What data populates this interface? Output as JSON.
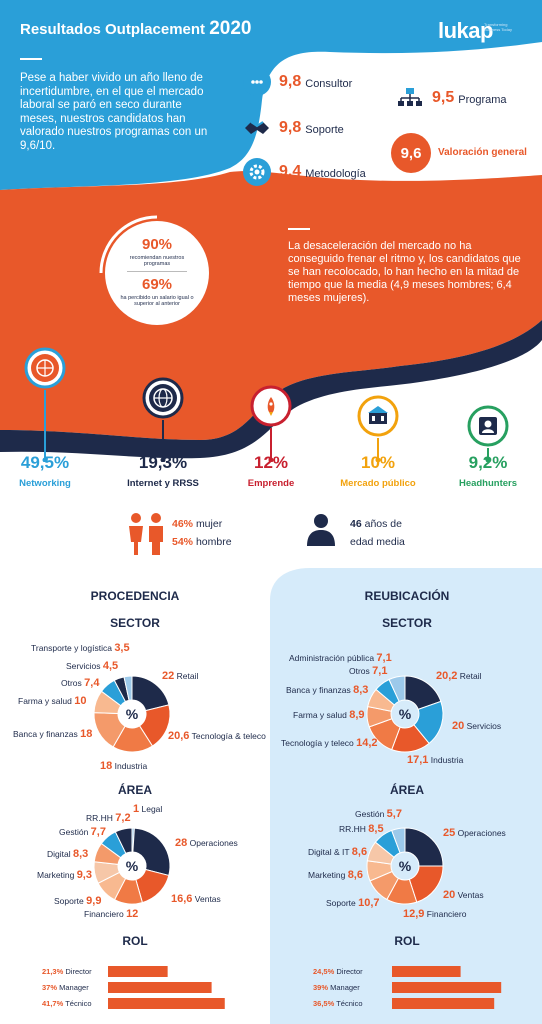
{
  "header": {
    "title": "Resultados Outplacement",
    "year": "2020",
    "logo": "lukap",
    "logo_sub": "Transforming Business Today"
  },
  "intro": "Pese a haber vivido un año lleno de incertidumbre, en el que el mercado laboral se paró en seco durante meses, nuestros candidatos han valorado nuestros programas con un 9,6/10.",
  "scores": [
    {
      "value": "9,8",
      "label": "Consultor",
      "icon": "chat-bubble-icon"
    },
    {
      "value": "9,8",
      "label": "Soporte",
      "icon": "handshake-icon"
    },
    {
      "value": "9,4",
      "label": "Metodología",
      "icon": "gear-icon"
    },
    {
      "value": "9,5",
      "label": "Programa",
      "icon": "org-chart-icon"
    }
  ],
  "overall": {
    "value": "9,6",
    "label": "Valoración general"
  },
  "recommend": {
    "pct1": "90%",
    "text1": "recomiendan nuestros programas",
    "pct2": "69%",
    "text2": "ha percibido un salario igual o superior al anterior"
  },
  "deceleration": "La desaceleración del mercado no ha conseguido frenar el ritmo y, los candidatos que se han recolocado, lo han hecho en la mitad de tiempo que la media (4,9 meses hombres; 6,4 meses mujeres).",
  "channels": [
    {
      "pct": "49,5%",
      "name": "Networking",
      "color": "#2a9fd8",
      "icon": "network-icon"
    },
    {
      "pct": "19,3%",
      "name": "Internet y RRSS",
      "color": "#1e2a4a",
      "icon": "globe-icon"
    },
    {
      "pct": "12%",
      "name": "Emprende",
      "color": "#c8202f",
      "icon": "rocket-icon"
    },
    {
      "pct": "10%",
      "name": "Mercado público",
      "color": "#f2a20d",
      "icon": "building-icon"
    },
    {
      "pct": "9,2%",
      "name": "Headhunters",
      "color": "#27a060",
      "icon": "person-badge-icon"
    }
  ],
  "demographics": {
    "women_pct": "46%",
    "women_label": "mujer",
    "men_pct": "54%",
    "men_label": "hombre",
    "age": "46",
    "age_label1": "años de",
    "age_label2": "edad media"
  },
  "sections": {
    "left": "PROCEDENCIA",
    "right": "REUBICACIÓN",
    "sector": "SECTOR",
    "area": "ÁREA",
    "rol": "ROL",
    "pct_symbol": "%"
  },
  "chart_data": [
    {
      "type": "pie",
      "title": "PROCEDENCIA · SECTOR",
      "categories": [
        "Retail",
        "Tecnología & teleco",
        "Industria",
        "Banca y finanzas",
        "Farma y salud",
        "Otros",
        "Servicios",
        "Transporte y logística"
      ],
      "values": [
        22,
        20.6,
        18,
        18,
        10,
        7.4,
        4.5,
        3.5
      ],
      "display": [
        "22",
        "20,6",
        "18",
        "18",
        "10",
        "7,4",
        "4,5",
        "3,5"
      ]
    },
    {
      "type": "pie",
      "title": "PROCEDENCIA · ÁREA",
      "categories": [
        "Legal",
        "Operaciones",
        "Ventas",
        "Financiero",
        "Soporte",
        "Marketing",
        "Digital",
        "Gestión",
        "RR.HH"
      ],
      "values": [
        1,
        28,
        16.6,
        12,
        9.9,
        9.3,
        8.3,
        7.7,
        7.2
      ],
      "display": [
        "1",
        "28",
        "16,6",
        "12",
        "9,9",
        "9,3",
        "8,3",
        "7,7",
        "7,2"
      ]
    },
    {
      "type": "bar",
      "title": "PROCEDENCIA · ROL",
      "categories": [
        "Director",
        "Manager",
        "Técnico"
      ],
      "values": [
        21.3,
        37,
        41.7
      ],
      "display": [
        "21,3%",
        "37%",
        "41,7%"
      ]
    },
    {
      "type": "pie",
      "title": "REUBICACIÓN · SECTOR",
      "categories": [
        "Retail",
        "Servicios",
        "Industria",
        "Tecnología y teleco",
        "Farma y salud",
        "Banca y finanzas",
        "Otros",
        "Administración pública"
      ],
      "values": [
        20.2,
        20,
        17.1,
        14.2,
        8.9,
        8.3,
        7.1,
        7.1
      ],
      "display": [
        "20,2",
        "20",
        "17,1",
        "14,2",
        "8,9",
        "8,3",
        "7,1",
        "7,1"
      ]
    },
    {
      "type": "pie",
      "title": "REUBICACIÓN · ÁREA",
      "categories": [
        "Operaciones",
        "Ventas",
        "Financiero",
        "Soporte",
        "Marketing",
        "Digital & IT",
        "RR.HH",
        "Gestión"
      ],
      "values": [
        25,
        20,
        12.9,
        10.7,
        8.6,
        8.6,
        8.5,
        5.7
      ],
      "display": [
        "25",
        "20",
        "12,9",
        "10,7",
        "8,6",
        "8,6",
        "8,5",
        "5,7"
      ]
    },
    {
      "type": "bar",
      "title": "REUBICACIÓN · ROL",
      "categories": [
        "Director",
        "Manager",
        "Técnico"
      ],
      "values": [
        24.5,
        39,
        36.5
      ],
      "display": [
        "24,5%",
        "39%",
        "36,5%"
      ]
    }
  ],
  "colors": {
    "navy": "#1e2a4a",
    "orange": "#e8582a",
    "blue": "#2a9fd8",
    "light_blue": "#d6ebfa"
  }
}
